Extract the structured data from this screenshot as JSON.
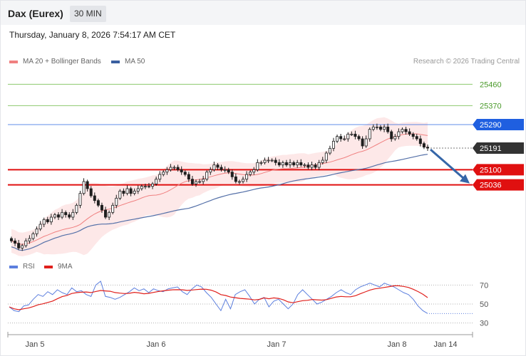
{
  "header": {
    "symbol": "Dax (Eurex)",
    "timeframe": "30 MIN"
  },
  "datetime": "Thursday, January 8, 2026 7:54:17 AM CET",
  "legend": {
    "ma20": "MA 20 + Bollinger Bands",
    "ma50": "MA 50",
    "copyright": "Research © 2026 Trading Central"
  },
  "rsi_legend": {
    "rsi": "RSI",
    "ma9": "9MA"
  },
  "colors": {
    "ma20": "#f08080",
    "bollinger_fill": "#fde4e4",
    "ma50": "#5470a8",
    "candle": "#1e1e1e",
    "resistance_green": "#8dc96e",
    "pivot_blue": "#1f5fe0",
    "support_red": "#e01010",
    "last_price": "#333333",
    "arrow": "#3566a8",
    "rsi": "#5c7fde",
    "rsi_ma": "#e0201c"
  },
  "chart_data": [
    {
      "type": "candlestick",
      "title": "Dax (Eurex)",
      "timeframe": "30 MIN",
      "x_labels": [
        "Jan 5",
        "Jan 6",
        "Jan 7",
        "Jan 8",
        "Jan 14"
      ],
      "ylim": [
        24750,
        25530
      ],
      "levels": [
        {
          "value": 25460,
          "label": "25460",
          "kind": "resistance"
        },
        {
          "value": 25370,
          "label": "25370",
          "kind": "resistance"
        },
        {
          "value": 25290,
          "label": "25290",
          "kind": "pivot"
        },
        {
          "value": 25191,
          "label": "25191",
          "kind": "last"
        },
        {
          "value": 25100,
          "label": "25100",
          "kind": "support"
        },
        {
          "value": 25036,
          "label": "25036",
          "kind": "support"
        }
      ],
      "closes": [
        24800,
        24790,
        24770,
        24780,
        24800,
        24810,
        24830,
        24850,
        24870,
        24890,
        24880,
        24900,
        24910,
        24900,
        24920,
        24910,
        24900,
        24920,
        24950,
        25000,
        25050,
        25020,
        24990,
        24970,
        24950,
        24930,
        24900,
        24920,
        24950,
        24980,
        25010,
        25000,
        25020,
        25000,
        25010,
        25020,
        25030,
        25030,
        25030,
        25040,
        25060,
        25080,
        25090,
        25100,
        25110,
        25110,
        25100,
        25090,
        25080,
        25060,
        25040,
        25050,
        25050,
        25060,
        25090,
        25100,
        25120,
        25110,
        25100,
        25100,
        25090,
        25070,
        25050,
        25050,
        25060,
        25080,
        25090,
        25100,
        25130,
        25130,
        25140,
        25140,
        25140,
        25130,
        25120,
        25130,
        25120,
        25130,
        25120,
        25130,
        25120,
        25120,
        25110,
        25120,
        25110,
        25130,
        25140,
        25170,
        25190,
        25220,
        25240,
        25230,
        25230,
        25250,
        25250,
        25240,
        25230,
        25200,
        25230,
        25270,
        25280,
        25280,
        25270,
        25280,
        25260,
        25230,
        25240,
        25260,
        25270,
        25260,
        25250,
        25240,
        25230,
        25210,
        25195,
        25191
      ],
      "ma20_end": 25240,
      "ma50_end": 25200,
      "forecast_arrow": {
        "from": 25191,
        "to": 25036
      }
    },
    {
      "type": "line",
      "title": "RSI",
      "series": [
        {
          "name": "RSI"
        },
        {
          "name": "9MA"
        }
      ],
      "yticks": [
        30,
        50,
        70
      ],
      "rsi_last": 40,
      "rsi_values": [
        47,
        43,
        42,
        48,
        49,
        55,
        60,
        58,
        63,
        60,
        65,
        62,
        60,
        67,
        63,
        64,
        60,
        58,
        70,
        74,
        58,
        57,
        55,
        57,
        60,
        63,
        67,
        64,
        66,
        62,
        66,
        64,
        63,
        66,
        67,
        68,
        63,
        60,
        66,
        70,
        68,
        62,
        57,
        50,
        43,
        55,
        45,
        60,
        63,
        65,
        58,
        50,
        55,
        57,
        47,
        53,
        55,
        50,
        45,
        50,
        60,
        65,
        60,
        55,
        50,
        52,
        55,
        58,
        62,
        65,
        62,
        60,
        65,
        68,
        70,
        72,
        70,
        68,
        72,
        70,
        68,
        65,
        62,
        60,
        55,
        48,
        43,
        40
      ]
    }
  ]
}
